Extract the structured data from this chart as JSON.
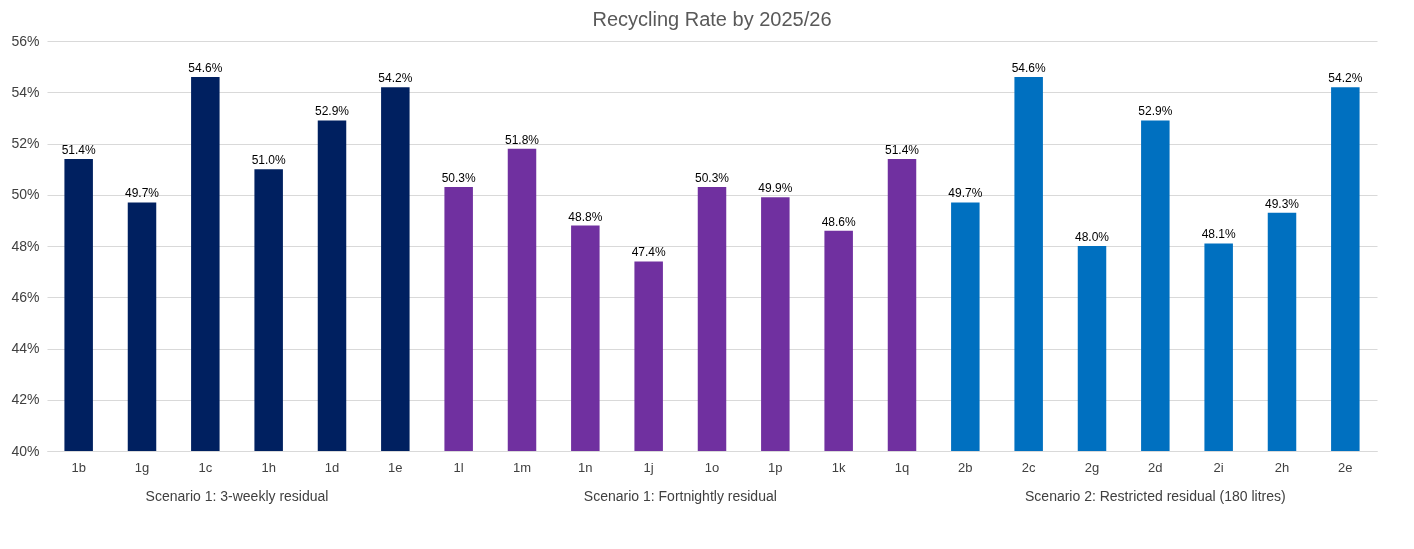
{
  "chart_data": {
    "type": "bar",
    "title": "Recycling Rate by 2025/26",
    "categories": [
      "1b",
      "1g",
      "1c",
      "1h",
      "1d",
      "1e",
      "1l",
      "1m",
      "1n",
      "1j",
      "1o",
      "1p",
      "1k",
      "1q",
      "2b",
      "2c",
      "2g",
      "2d",
      "2i",
      "2h",
      "2e"
    ],
    "series": [
      {
        "name": "Scenario 1: 3-weekly residual",
        "color": "#002060",
        "values": [
          51.4,
          49.7,
          54.6,
          51.0,
          52.9,
          54.2,
          null,
          null,
          null,
          null,
          null,
          null,
          null,
          null,
          null,
          null,
          null,
          null,
          null,
          null,
          null
        ],
        "value_labels": [
          "51.4%",
          "49.7%",
          "54.6%",
          "51.0%",
          "52.9%",
          "54.2%",
          null,
          null,
          null,
          null,
          null,
          null,
          null,
          null,
          null,
          null,
          null,
          null,
          null,
          null,
          null
        ]
      },
      {
        "name": "Scenario 1: Fortnightly residual",
        "color": "#7030a0",
        "values": [
          null,
          null,
          null,
          null,
          null,
          null,
          50.3,
          51.8,
          48.8,
          47.4,
          50.3,
          49.9,
          48.6,
          51.4,
          null,
          null,
          null,
          null,
          null,
          null,
          null
        ],
        "value_labels": [
          null,
          null,
          null,
          null,
          null,
          null,
          "50.3%",
          "51.8%",
          "48.8%",
          "47.4%",
          "50.3%",
          "49.9%",
          "48.6%",
          "51.4%",
          null,
          null,
          null,
          null,
          null,
          null,
          null
        ]
      },
      {
        "name": "Scenario 2: Restricted residual (180 litres)",
        "color": "#0070c0",
        "values": [
          null,
          null,
          null,
          null,
          null,
          null,
          null,
          null,
          null,
          null,
          null,
          null,
          null,
          null,
          49.7,
          54.6,
          48.0,
          52.9,
          48.1,
          49.3,
          54.2
        ],
        "value_labels": [
          null,
          null,
          null,
          null,
          null,
          null,
          null,
          null,
          null,
          null,
          null,
          null,
          null,
          null,
          "49.7%",
          "54.6%",
          "48.0%",
          "52.9%",
          "48.1%",
          "49.3%",
          "54.2%"
        ]
      }
    ],
    "ylim": [
      40,
      56
    ],
    "yticks": [
      {
        "value": 40,
        "label": "40%"
      },
      {
        "value": 42,
        "label": "42%"
      },
      {
        "value": 44,
        "label": "44%"
      },
      {
        "value": 46,
        "label": "46%"
      },
      {
        "value": 48,
        "label": "48%"
      },
      {
        "value": 50,
        "label": "50%"
      },
      {
        "value": 52,
        "label": "52%"
      },
      {
        "value": 54,
        "label": "54%"
      },
      {
        "value": 56,
        "label": "56%"
      }
    ],
    "grid": "y"
  }
}
